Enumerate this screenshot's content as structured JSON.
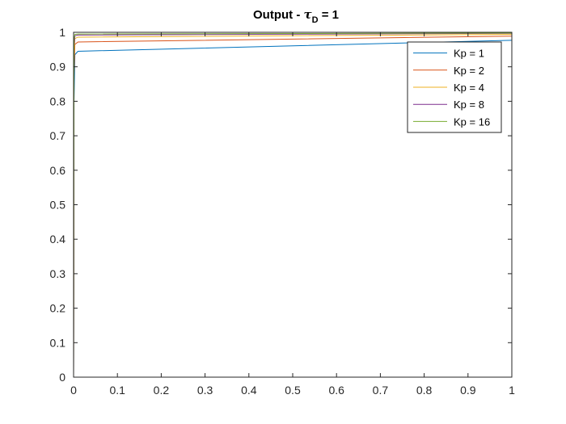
{
  "chart_data": {
    "type": "line",
    "title": {
      "prefix": "Output - ",
      "symbol": "τ",
      "subscript": "D",
      "suffix": " = 1"
    },
    "xlabel": "",
    "ylabel": "",
    "xlim": [
      0,
      1
    ],
    "ylim": [
      0,
      1
    ],
    "xticks": [
      0,
      0.1,
      0.2,
      0.3,
      0.4,
      0.5,
      0.6,
      0.7,
      0.8,
      0.9,
      1
    ],
    "xtick_labels": [
      "0",
      "0.1",
      "0.2",
      "0.3",
      "0.4",
      "0.5",
      "0.6",
      "0.7",
      "0.8",
      "0.9",
      "1"
    ],
    "yticks": [
      0,
      0.1,
      0.2,
      0.3,
      0.4,
      0.5,
      0.6,
      0.7,
      0.8,
      0.9,
      1
    ],
    "ytick_labels": [
      "0",
      "0.1",
      "0.2",
      "0.3",
      "0.4",
      "0.5",
      "0.6",
      "0.7",
      "0.8",
      "0.9",
      "1"
    ],
    "grid": false,
    "legend": "top-right",
    "series": [
      {
        "name": "Kp = 1",
        "color": "#0072BD",
        "x": [
          0,
          0.001,
          0.003,
          0.01,
          1
        ],
        "y": [
          0,
          0.8,
          0.935,
          0.945,
          0.977
        ]
      },
      {
        "name": "Kp = 2",
        "color": "#D95319",
        "x": [
          0,
          0.001,
          0.003,
          0.01,
          1
        ],
        "y": [
          0,
          0.88,
          0.965,
          0.972,
          0.989
        ]
      },
      {
        "name": "Kp = 4",
        "color": "#EDB120",
        "x": [
          0,
          0.001,
          0.003,
          0.01,
          1
        ],
        "y": [
          0,
          0.93,
          0.982,
          0.986,
          0.994
        ]
      },
      {
        "name": "Kp = 8",
        "color": "#7E2F8E",
        "x": [
          0,
          0.001,
          0.003,
          0.01,
          1
        ],
        "y": [
          0,
          0.96,
          0.99,
          0.992,
          0.997
        ]
      },
      {
        "name": "Kp = 16",
        "color": "#77AC30",
        "x": [
          0,
          0.001,
          0.003,
          0.01,
          1
        ],
        "y": [
          0,
          0.98,
          0.994,
          0.995,
          0.998
        ]
      }
    ]
  }
}
